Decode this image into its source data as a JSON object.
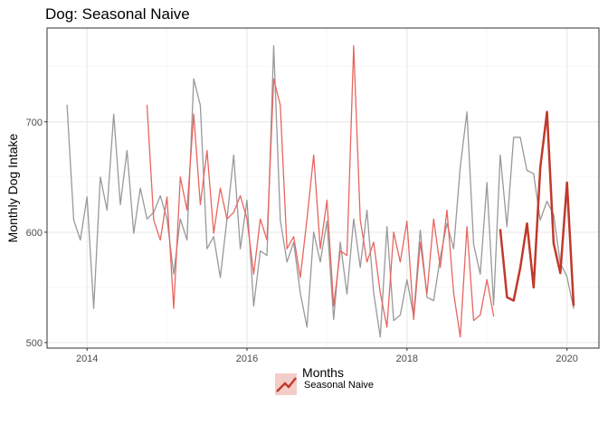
{
  "chart_data": {
    "type": "line",
    "title": "Dog: Seasonal Naive",
    "xlabel": "Months",
    "ylabel": "Monthly Dog Intake",
    "xlim": [
      2013.5,
      2020.4
    ],
    "ylim": [
      495,
      785
    ],
    "x_ticks": [
      2014,
      2016,
      2018,
      2020
    ],
    "y_ticks": [
      500,
      600,
      700
    ],
    "grid": true,
    "legend_position": "bottom",
    "series": [
      {
        "role": "actual",
        "color": "#999999",
        "x_start": 2013.75,
        "step": 0.08333,
        "values": [
          715,
          611,
          593,
          632,
          531,
          650,
          620,
          707,
          625,
          674,
          599,
          640,
          612,
          618,
          633,
          612,
          562,
          612,
          593,
          739,
          715,
          585,
          596,
          559,
          612,
          670,
          585,
          629,
          533,
          583,
          579,
          769,
          611,
          573,
          591,
          545,
          514,
          600,
          573,
          610,
          521,
          591,
          544,
          612,
          568,
          620,
          545,
          505,
          605,
          520,
          525,
          557,
          524,
          602,
          541,
          538,
          577,
          608,
          585,
          659,
          709,
          589,
          562,
          645,
          534,
          670,
          605,
          686,
          686,
          656,
          653,
          611,
          628,
          616,
          572,
          560,
          531
        ]
      },
      {
        "role": "fitted",
        "color": "#e8655f",
        "x_start": 2014.75,
        "step": 0.08333,
        "values": [
          715,
          611,
          593,
          632,
          531,
          650,
          620,
          707,
          625,
          674,
          599,
          640,
          612,
          618,
          633,
          612,
          562,
          612,
          593,
          739,
          715,
          585,
          596,
          559,
          612,
          670,
          585,
          629,
          533,
          583,
          579,
          769,
          611,
          573,
          591,
          545,
          514,
          600,
          573,
          610,
          521,
          591,
          544,
          612,
          568,
          620,
          545,
          505,
          605,
          520,
          525,
          557,
          524
        ]
      },
      {
        "name": "Seasonal Naive",
        "role": "forecast",
        "color": "#c0392b",
        "x_start": 2019.167,
        "step": 0.08333,
        "values": [
          602,
          541,
          538,
          568,
          608,
          550,
          659,
          709,
          590,
          563,
          645,
          534
        ]
      }
    ]
  }
}
